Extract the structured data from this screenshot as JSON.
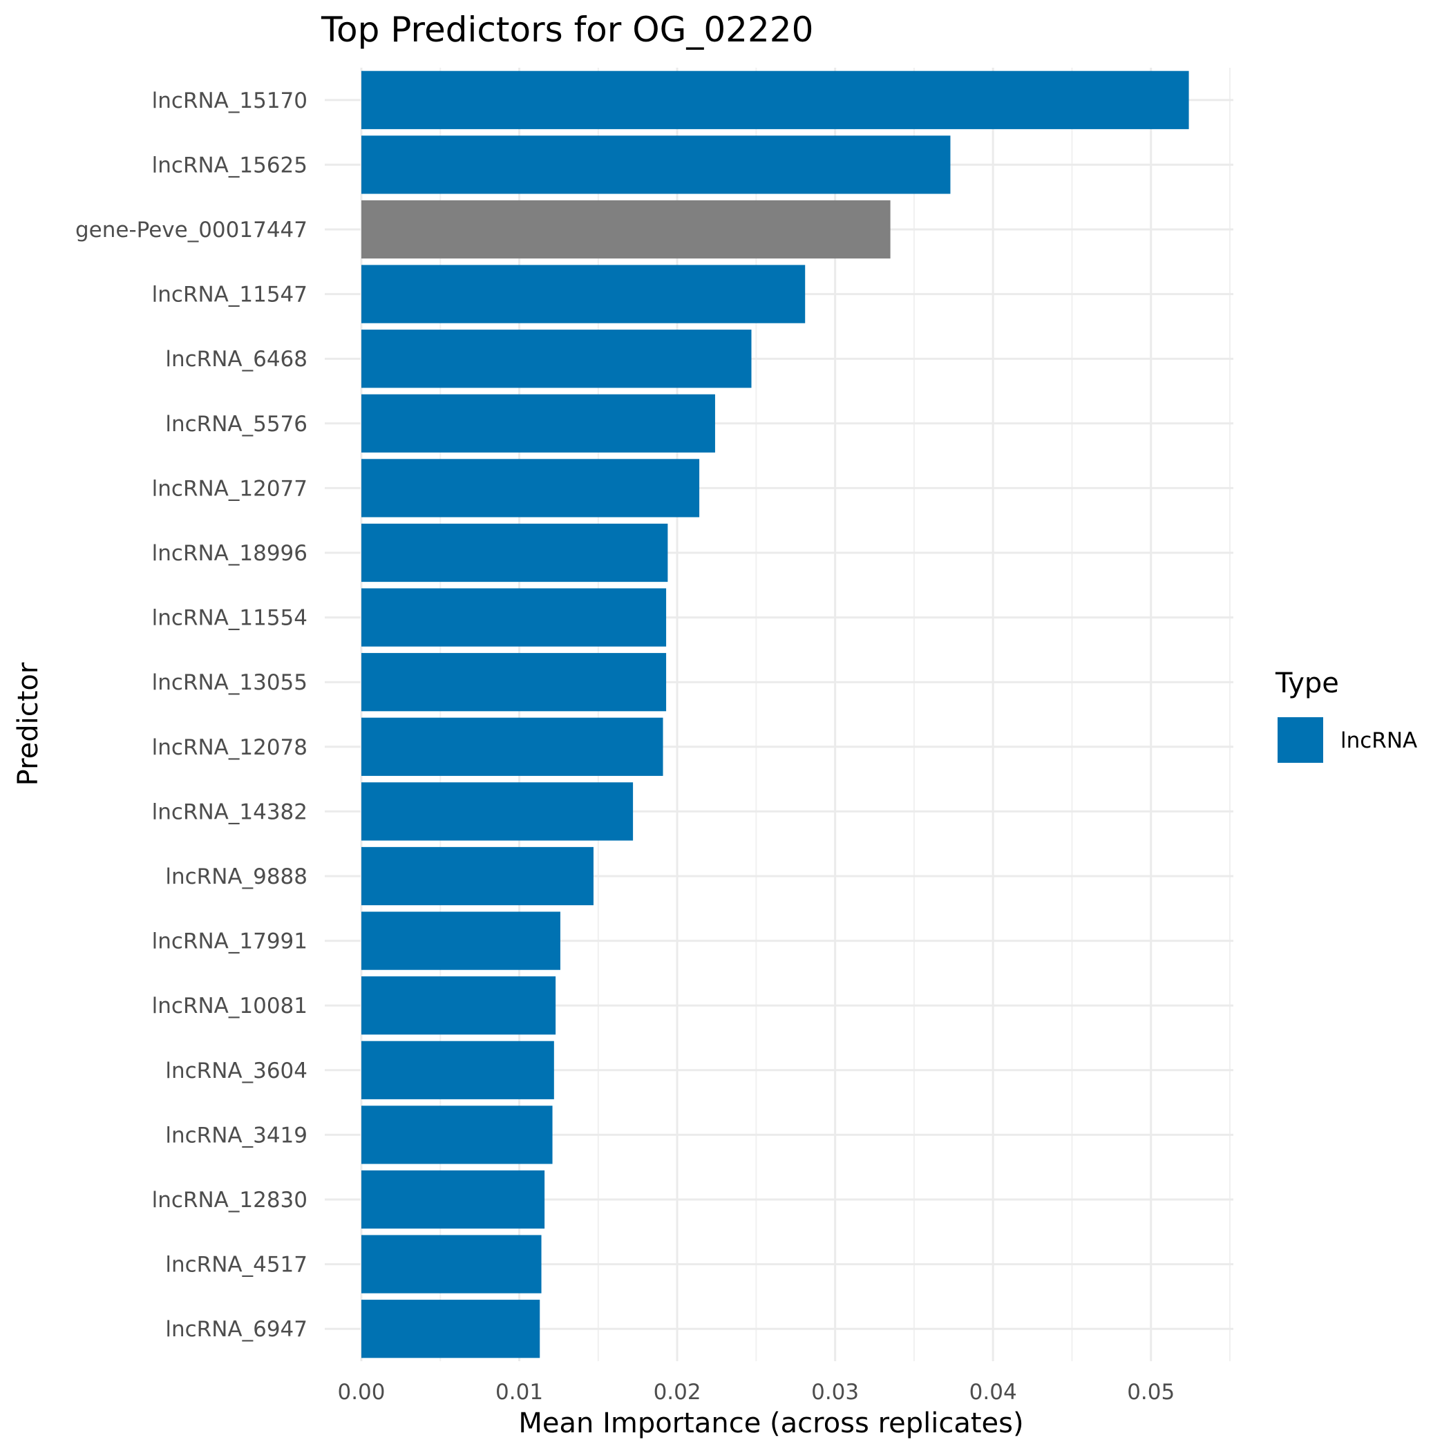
{
  "chart_data": {
    "type": "bar",
    "orientation": "horizontal",
    "title": "Top Predictors for OG_02220",
    "xlabel": "Mean Importance (across replicates)",
    "ylabel": "Predictor",
    "xlim": [
      0,
      0.055
    ],
    "xticks": [
      "0.00",
      "0.01",
      "0.02",
      "0.03",
      "0.04",
      "0.05"
    ],
    "xtick_values": [
      0,
      0.01,
      0.02,
      0.03,
      0.04,
      0.05
    ],
    "grid": true,
    "legend": {
      "title": "Type",
      "placement": "right",
      "entries": [
        {
          "label": "lncRNA",
          "color": "#0072B2"
        }
      ]
    },
    "colors": {
      "lncRNA": "#0072B2",
      "other": "#808080"
    },
    "categories": [
      "lncRNA_15170",
      "lncRNA_15625",
      "gene-Peve_00017447",
      "lncRNA_11547",
      "lncRNA_6468",
      "lncRNA_5576",
      "lncRNA_12077",
      "lncRNA_18996",
      "lncRNA_11554",
      "lncRNA_13055",
      "lncRNA_12078",
      "lncRNA_14382",
      "lncRNA_9888",
      "lncRNA_17991",
      "lncRNA_10081",
      "lncRNA_3604",
      "lncRNA_3419",
      "lncRNA_12830",
      "lncRNA_4517",
      "lncRNA_6947"
    ],
    "values": [
      0.0524,
      0.0373,
      0.0335,
      0.0281,
      0.0247,
      0.0224,
      0.0214,
      0.0194,
      0.0193,
      0.0193,
      0.0191,
      0.0172,
      0.0147,
      0.0126,
      0.0123,
      0.0122,
      0.0121,
      0.0116,
      0.0114,
      0.0113
    ],
    "types": [
      "lncRNA",
      "lncRNA",
      "other",
      "lncRNA",
      "lncRNA",
      "lncRNA",
      "lncRNA",
      "lncRNA",
      "lncRNA",
      "lncRNA",
      "lncRNA",
      "lncRNA",
      "lncRNA",
      "lncRNA",
      "lncRNA",
      "lncRNA",
      "lncRNA",
      "lncRNA",
      "lncRNA",
      "lncRNA"
    ]
  }
}
